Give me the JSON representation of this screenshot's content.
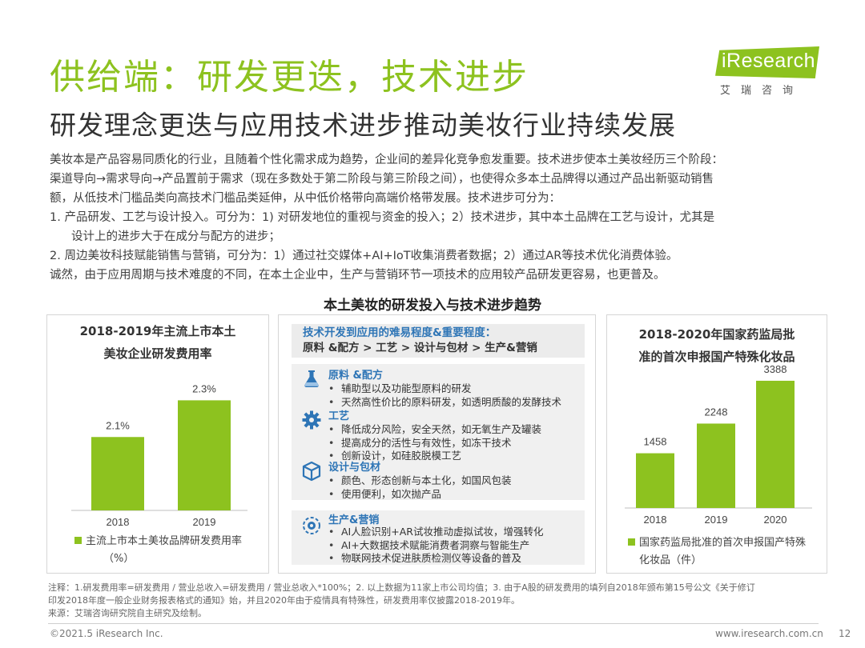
{
  "title": "供给端：研发更迭，技术进步",
  "subtitle": "研发理念更迭与应用技术进步推动美妆行业持续发展",
  "logo": {
    "name": "iResearch",
    "cn": "艾瑞咨询"
  },
  "body": {
    "lines": [
      "美妆本是产品容易同质化的行业，且随着个性化需求成为趋势，企业间的差异化竞争愈发重要。技术进步使本土美妆经历三个阶段：",
      "渠道导向→需求导向→产品置前于需求（现在多数处于第二阶段与第三阶段之间），也使得众多本土品牌得以通过产品出新驱动销售",
      "额，从低技术门槛品类向高技术门槛品类延伸，从中低价格带向高端价格带发展。技术进步可分为：",
      "1.   产品研发、工艺与设计投入。可分为：1) 对研发地位的重视与资金的投入；2）技术进步，其中本土品牌在工艺与设计，尤其是",
      "设计上的进步大于在成分与配方的进步；",
      "2.   周边美妆科技赋能销售与营销，可分为：1）通过社交媒体+AI+IoT收集消费者数据；2）通过AR等技术优化消费体验。",
      "诚然，由于应用周期与技术难度的不同，在本土企业中，生产与营销环节一项技术的应用较产品研发更容易，也更普及。"
    ]
  },
  "section_title": "本土美妆的研发投入与技术进步趋势",
  "left_chart": {
    "title_line1": "2018-2019年主流上市本土",
    "title_line2": "美妆企业研发费用率",
    "legend_line1": "主流上市本土美妆品牌研发费用率",
    "legend_line2": "（%）",
    "value_labels": [
      "2.1%",
      "2.3%"
    ]
  },
  "right_chart": {
    "title_line1": "2018-2020年国家药监局批",
    "title_line2": "准的首次申报国产特殊化妆品",
    "legend_line1": "国家药监局批准的首次申报国产特殊",
    "legend_line2": "化妆品（件）"
  },
  "chart_data": [
    {
      "type": "bar",
      "title": "2018-2019年主流上市本土美妆企业研发费用率",
      "categories": [
        "2018",
        "2019"
      ],
      "series": [
        {
          "name": "主流上市本土美妆品牌研发费用率（%）",
          "values": [
            2.1,
            2.3
          ]
        }
      ],
      "ylim": [
        1.7,
        2.45
      ],
      "grid": false,
      "legend": "bottom",
      "color": "#8dc21f"
    },
    {
      "type": "bar",
      "title": "2018-2020年国家药监局批准的首次申报国产特殊化妆品",
      "categories": [
        "2018",
        "2019",
        "2020"
      ],
      "series": [
        {
          "name": "国家药监局批准的首次申报国产特殊化妆品（件）",
          "values": [
            1458,
            2248,
            3388
          ]
        }
      ],
      "ylim": [
        0,
        3600
      ],
      "grid": false,
      "legend": "bottom",
      "color": "#8dc21f"
    }
  ],
  "middle": {
    "head_line1": "技术开发到应用的难易程度&重要程度：",
    "head_line2": "原料 &配方 > 工艺 > 设计与包材 > 生产&营销",
    "categories": [
      {
        "icon": "flask-icon",
        "title": "原料 &配方",
        "items": [
          "辅助型以及功能型原料的研发",
          "天然高性价比的原料研发，如透明质酸的发酵技术"
        ]
      },
      {
        "icon": "gear-icon",
        "title": "工艺",
        "items": [
          "降低成分风险，安全天然，如无氧生产及罐装",
          "提高成分的活性与有效性，如冻干技术",
          "创新设计，如硅胶脱模工艺"
        ]
      },
      {
        "icon": "box-icon",
        "title": "设计与包材",
        "items": [
          "颜色、形态创新与本土化，如国风包装",
          "使用便利，如次抛产品"
        ]
      },
      {
        "icon": "settings-cycle-icon",
        "title": "生产&营销",
        "items": [
          "AI人脸识别+AR试妆推动虚拟试妆，增强转化",
          "AI+大数据技术赋能消费者洞察与智能生产",
          "物联网技术促进肤质检测仪等设备的普及"
        ]
      }
    ]
  },
  "footnote": {
    "line1": "注释：1.研发费用率=研发费用 / 营业总收入=研发费用 / 营业总收入*100%；2. 以上数据为11家上市公司均值；3. 由于A股的研发费用的填列自2018年颁布第15号公文《关于修订",
    "line2": "印发2018年度一般企业财务报表格式的通知》始，并且2020年由于疫情具有特殊性，研发费用率仅披露2018-2019年。",
    "line3": "来源：艾瑞咨询研究院自主研究及绘制。"
  },
  "footer": {
    "copyright": "©2021.5 iResearch Inc.",
    "url": "www.iresearch.com.cn",
    "page": "12"
  }
}
